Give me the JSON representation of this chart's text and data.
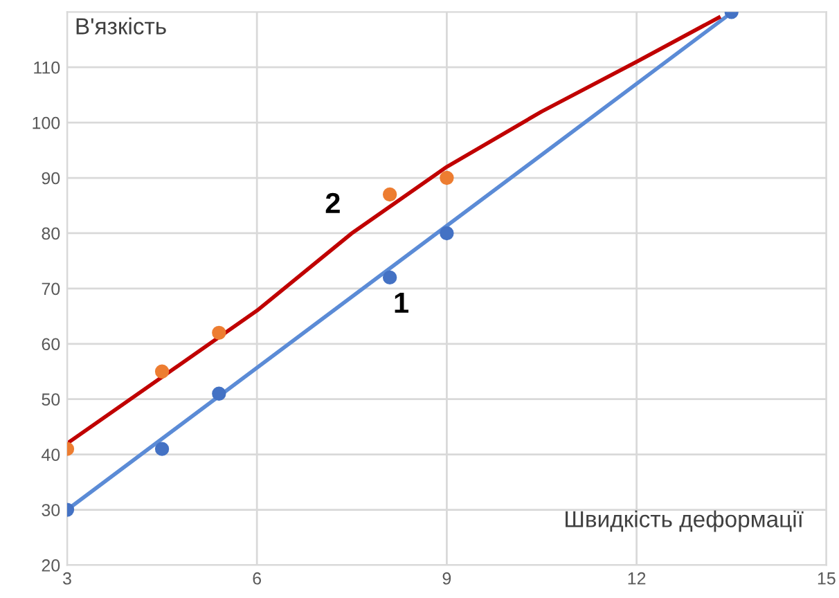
{
  "chart_data": {
    "type": "scatter",
    "xlabel": "Швидкість деформації",
    "ylabel": "В'язкість",
    "xlim": [
      3,
      15
    ],
    "xticks": [
      3,
      6,
      9,
      12,
      15
    ],
    "ylim": [
      20,
      120
    ],
    "yticks": [
      20,
      30,
      40,
      50,
      60,
      70,
      80,
      90,
      100,
      110
    ],
    "grid": true,
    "series": [
      {
        "marker": "circle",
        "color": "#4472c4",
        "x": [
          3,
          4.5,
          5.4,
          8.1,
          9,
          13.5
        ],
        "values": [
          30,
          41,
          51,
          72,
          80,
          120
        ]
      },
      {
        "marker": "circle",
        "color": "#ed7d31",
        "x": [
          3,
          4.5,
          5.4,
          8.1,
          9
        ],
        "values": [
          41,
          55,
          62,
          87,
          90
        ]
      },
      {
        "type": "line",
        "marker": "none",
        "color": "#5b8bd6",
        "x": [
          3,
          13.4
        ],
        "values": [
          30,
          119
        ]
      },
      {
        "type": "line",
        "marker": "none",
        "color": "#c00000",
        "x": [
          3,
          4.5,
          6,
          7.5,
          9,
          10.5,
          12,
          13.3
        ],
        "values": [
          42,
          54,
          66,
          80,
          92,
          102,
          111,
          119
        ]
      }
    ],
    "annotations": [
      "1",
      "2"
    ]
  }
}
